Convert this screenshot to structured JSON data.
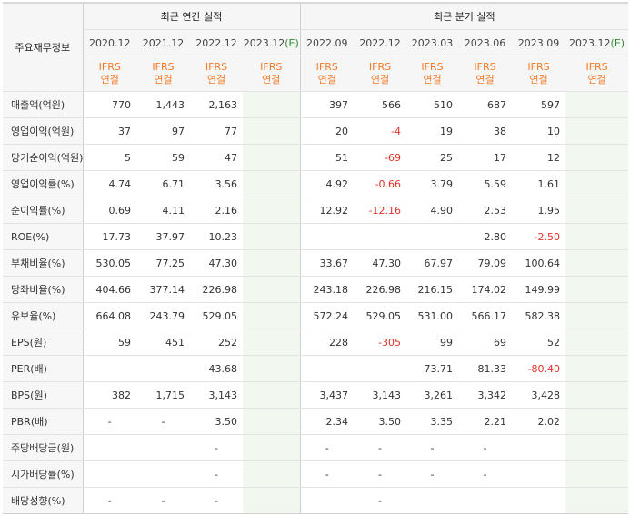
{
  "header": {
    "row_label": "주요재무정보",
    "annual_title": "최근 연간 실적",
    "quarter_title": "최근 분기 실적"
  },
  "columns": [
    {
      "period": "2020.12",
      "standard": [
        "IFRS",
        "연결"
      ],
      "estimate": false
    },
    {
      "period": "2021.12",
      "standard": [
        "IFRS",
        "연결"
      ],
      "estimate": false
    },
    {
      "period": "2022.12",
      "standard": [
        "IFRS",
        "연결"
      ],
      "estimate": false
    },
    {
      "period": "2023.12",
      "estimate_mark": "(E)",
      "standard": [
        "IFRS",
        "연결"
      ],
      "estimate": true
    },
    {
      "period": "2022.09",
      "standard": [
        "IFRS",
        "연결"
      ],
      "estimate": false
    },
    {
      "period": "2022.12",
      "standard": [
        "IFRS",
        "연결"
      ],
      "estimate": false
    },
    {
      "period": "2023.03",
      "standard": [
        "IFRS",
        "연결"
      ],
      "estimate": false
    },
    {
      "period": "2023.06",
      "standard": [
        "IFRS",
        "연결"
      ],
      "estimate": false
    },
    {
      "period": "2023.09",
      "standard": [
        "IFRS",
        "연결"
      ],
      "estimate": false
    },
    {
      "period": "2023.12",
      "estimate_mark": "(E)",
      "standard": [
        "IFRS",
        "연결"
      ],
      "estimate": true
    }
  ],
  "rows": [
    {
      "label": "매출액(억원)",
      "values": [
        "770",
        "1,443",
        "2,163",
        "",
        "397",
        "566",
        "510",
        "687",
        "597",
        ""
      ]
    },
    {
      "label": "영업이익(억원)",
      "values": [
        "37",
        "97",
        "77",
        "",
        "20",
        "-4",
        "19",
        "38",
        "10",
        ""
      ]
    },
    {
      "label": "당기순이익(억원)",
      "values": [
        "5",
        "59",
        "47",
        "",
        "51",
        "-69",
        "25",
        "17",
        "12",
        ""
      ]
    },
    {
      "label": "영업이익률(%)",
      "values": [
        "4.74",
        "6.71",
        "3.56",
        "",
        "4.92",
        "-0.66",
        "3.79",
        "5.59",
        "1.61",
        ""
      ]
    },
    {
      "label": "순이익률(%)",
      "values": [
        "0.69",
        "4.11",
        "2.16",
        "",
        "12.92",
        "-12.16",
        "4.90",
        "2.53",
        "1.95",
        ""
      ]
    },
    {
      "label": "ROE(%)",
      "values": [
        "17.73",
        "37.97",
        "10.23",
        "",
        "",
        "",
        "",
        "2.80",
        "-2.50",
        ""
      ]
    },
    {
      "label": "부채비율(%)",
      "values": [
        "530.05",
        "77.25",
        "47.30",
        "",
        "33.67",
        "47.30",
        "67.97",
        "79.09",
        "100.64",
        ""
      ]
    },
    {
      "label": "당좌비율(%)",
      "values": [
        "404.66",
        "377.14",
        "226.98",
        "",
        "243.18",
        "226.98",
        "216.15",
        "174.02",
        "149.99",
        ""
      ]
    },
    {
      "label": "유보율(%)",
      "values": [
        "664.08",
        "243.79",
        "529.05",
        "",
        "572.24",
        "529.05",
        "531.00",
        "566.17",
        "582.38",
        ""
      ]
    },
    {
      "label": "EPS(원)",
      "values": [
        "59",
        "451",
        "252",
        "",
        "228",
        "-305",
        "99",
        "69",
        "52",
        ""
      ]
    },
    {
      "label": "PER(배)",
      "values": [
        "",
        "",
        "43.68",
        "",
        "",
        "",
        "73.71",
        "81.33",
        "-80.40",
        ""
      ]
    },
    {
      "label": "BPS(원)",
      "values": [
        "382",
        "1,715",
        "3,143",
        "",
        "3,437",
        "3,143",
        "3,261",
        "3,342",
        "3,428",
        ""
      ]
    },
    {
      "label": "PBR(배)",
      "values": [
        "-",
        "-",
        "3.50",
        "",
        "2.34",
        "3.50",
        "3.35",
        "2.21",
        "2.02",
        ""
      ]
    },
    {
      "label": "주당배당금(원)",
      "values": [
        "",
        "",
        "-",
        "",
        "-",
        "-",
        "-",
        "-",
        "",
        ""
      ]
    },
    {
      "label": "시가배당률(%)",
      "values": [
        "",
        "",
        "-",
        "",
        "-",
        "-",
        "-",
        "-",
        "",
        ""
      ]
    },
    {
      "label": "배당성향(%)",
      "values": [
        "-",
        "-",
        "-",
        "",
        "",
        "-",
        "",
        "",
        "",
        ""
      ]
    }
  ],
  "colors": {
    "ifrs_text": "#f47a26",
    "negative": "#e0322b",
    "estimate_bg": "#f2f8ef",
    "estimate_mark": "#2e8a2e"
  }
}
